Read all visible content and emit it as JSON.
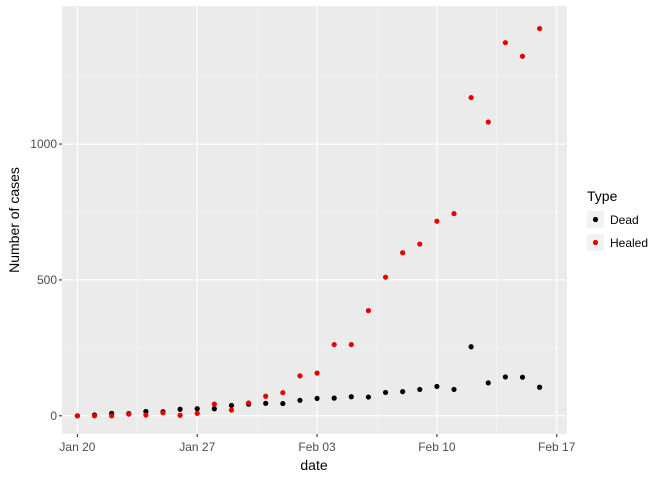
{
  "chart_data": {
    "type": "scatter",
    "title": "",
    "xlabel": "date",
    "ylabel": "Number of cases",
    "x_ticks": [
      {
        "date": "2020-01-20",
        "label": "Jan 20"
      },
      {
        "date": "2020-01-27",
        "label": "Jan 27"
      },
      {
        "date": "2020-02-03",
        "label": "Feb 03"
      },
      {
        "date": "2020-02-10",
        "label": "Feb 10"
      },
      {
        "date": "2020-02-17",
        "label": "Feb 17"
      }
    ],
    "y_ticks": [
      {
        "value": 0,
        "label": "0"
      },
      {
        "value": 500,
        "label": "500"
      },
      {
        "value": 1000,
        "label": "1000"
      }
    ],
    "xlim": [
      "2020-01-19.1",
      "2020-02-17.6"
    ],
    "ylim": [
      -67,
      1508
    ],
    "grid": true,
    "legend": {
      "title": "Type",
      "position": "right"
    },
    "x": [
      "2020-01-20",
      "2020-01-21",
      "2020-01-22",
      "2020-01-23",
      "2020-01-24",
      "2020-01-25",
      "2020-01-26",
      "2020-01-27",
      "2020-01-28",
      "2020-01-29",
      "2020-01-30",
      "2020-01-31",
      "2020-02-01",
      "2020-02-02",
      "2020-02-03",
      "2020-02-04",
      "2020-02-05",
      "2020-02-06",
      "2020-02-07",
      "2020-02-08",
      "2020-02-09",
      "2020-02-10",
      "2020-02-11",
      "2020-02-12",
      "2020-02-13",
      "2020-02-14",
      "2020-02-15",
      "2020-02-16"
    ],
    "series": [
      {
        "name": "Dead",
        "color": "#000000",
        "values": [
          0,
          3,
          9,
          8,
          16,
          15,
          24,
          26,
          26,
          38,
          43,
          46,
          45,
          57,
          64,
          65,
          70,
          69,
          86,
          89,
          97,
          108,
          97,
          254,
          121,
          143,
          142,
          105
        ]
      },
      {
        "name": "Healed",
        "color": "#E60000",
        "values": [
          0,
          0,
          0,
          6,
          3,
          11,
          2,
          9,
          43,
          21,
          47,
          72,
          85,
          147,
          157,
          262,
          262,
          387,
          510,
          600,
          632,
          716,
          744,
          1171,
          1081,
          1373,
          1323,
          1425
        ]
      }
    ]
  }
}
